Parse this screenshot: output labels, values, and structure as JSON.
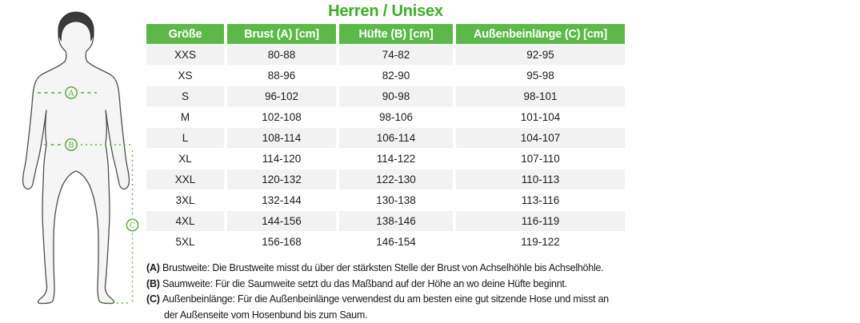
{
  "title": "Herren / Unisex",
  "colors": {
    "title_green": "#3eae2a",
    "header_green": "#5bb947",
    "row_alt": "#f2f2f2",
    "marker_green": "#5aad41"
  },
  "figure": {
    "markers": [
      "A",
      "B",
      "C"
    ]
  },
  "table": {
    "headers": [
      "Größe",
      "Brust (A) [cm]",
      "Hüfte (B) [cm]",
      "Außenbeinlänge (C) [cm]"
    ],
    "rows": [
      [
        "XXS",
        "80-88",
        "74-82",
        "92-95"
      ],
      [
        "XS",
        "88-96",
        "82-90",
        "95-98"
      ],
      [
        "S",
        "96-102",
        "90-98",
        "98-101"
      ],
      [
        "M",
        "102-108",
        "98-106",
        "101-104"
      ],
      [
        "L",
        "108-114",
        "106-114",
        "104-107"
      ],
      [
        "XL",
        "114-120",
        "114-122",
        "107-110"
      ],
      [
        "XXL",
        "120-132",
        "122-130",
        "110-113"
      ],
      [
        "3XL",
        "132-144",
        "130-138",
        "113-116"
      ],
      [
        "4XL",
        "144-156",
        "138-146",
        "116-119"
      ],
      [
        "5XL",
        "156-168",
        "146-154",
        "119-122"
      ]
    ]
  },
  "notes": [
    {
      "prefix": "(A) ",
      "text": "Brustweite: Die Brustweite misst du über der stärksten Stelle der Brust von Achselhöhle bis Achselhöhle.",
      "indent": false
    },
    {
      "prefix": "(B) ",
      "text": "Saumweite: Für die Saumweite setzt du das Maßband auf der Höhe an wo deine Hüfte beginnt.",
      "indent": false
    },
    {
      "prefix": "(C) ",
      "text": "Außenbeinlänge: Für die Außenbeinlänge verwendest du am besten eine gut sitzende Hose und misst an",
      "indent": false
    },
    {
      "prefix": "",
      "text": "der Außenseite vom Hosenbund bis zum Saum.",
      "indent": true
    }
  ]
}
